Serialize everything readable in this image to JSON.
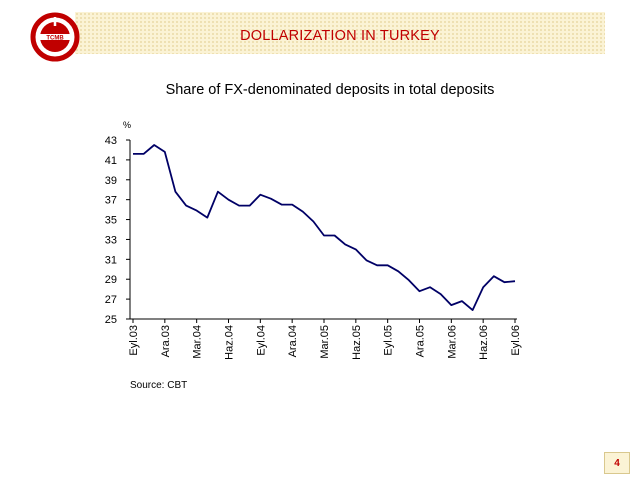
{
  "header": {
    "title": "DOLLARIZATION IN TURKEY"
  },
  "logo": {
    "icon": "tcmb-logo-icon",
    "text": "TCMB",
    "color": "#c00000"
  },
  "footer": {
    "source": "Source: CBT",
    "page_number": "4"
  },
  "chart_data": {
    "type": "line",
    "title": "Share of FX-denominated deposits in total deposits",
    "xlabel": "",
    "ylabel": "%",
    "ylim": [
      25,
      43
    ],
    "yticks": [
      25,
      27,
      29,
      31,
      33,
      35,
      37,
      39,
      41,
      43
    ],
    "grid": false,
    "legend": "none",
    "line_color": "#000066",
    "x_tick_labels": [
      "Eyl.03",
      "Ara.03",
      "Mar.04",
      "Haz.04",
      "Eyl.04",
      "Ara.04",
      "Mar.05",
      "Haz.05",
      "Eyl.05",
      "Ara.05",
      "Mar.06",
      "Haz.06",
      "Eyl.06"
    ],
    "series": [
      {
        "values": [
          41.6,
          41.6,
          42.5,
          41.8,
          37.8,
          36.4,
          35.9,
          35.2,
          37.8,
          37.0,
          36.4,
          36.4,
          37.5,
          37.1,
          36.5,
          36.5,
          35.8,
          34.8,
          33.4,
          33.4,
          32.5,
          32.0,
          30.9,
          30.4,
          30.4,
          29.8,
          28.9,
          27.8,
          28.2,
          27.5,
          26.4,
          26.8,
          25.9,
          28.2,
          29.3,
          28.7,
          28.8
        ]
      }
    ]
  }
}
